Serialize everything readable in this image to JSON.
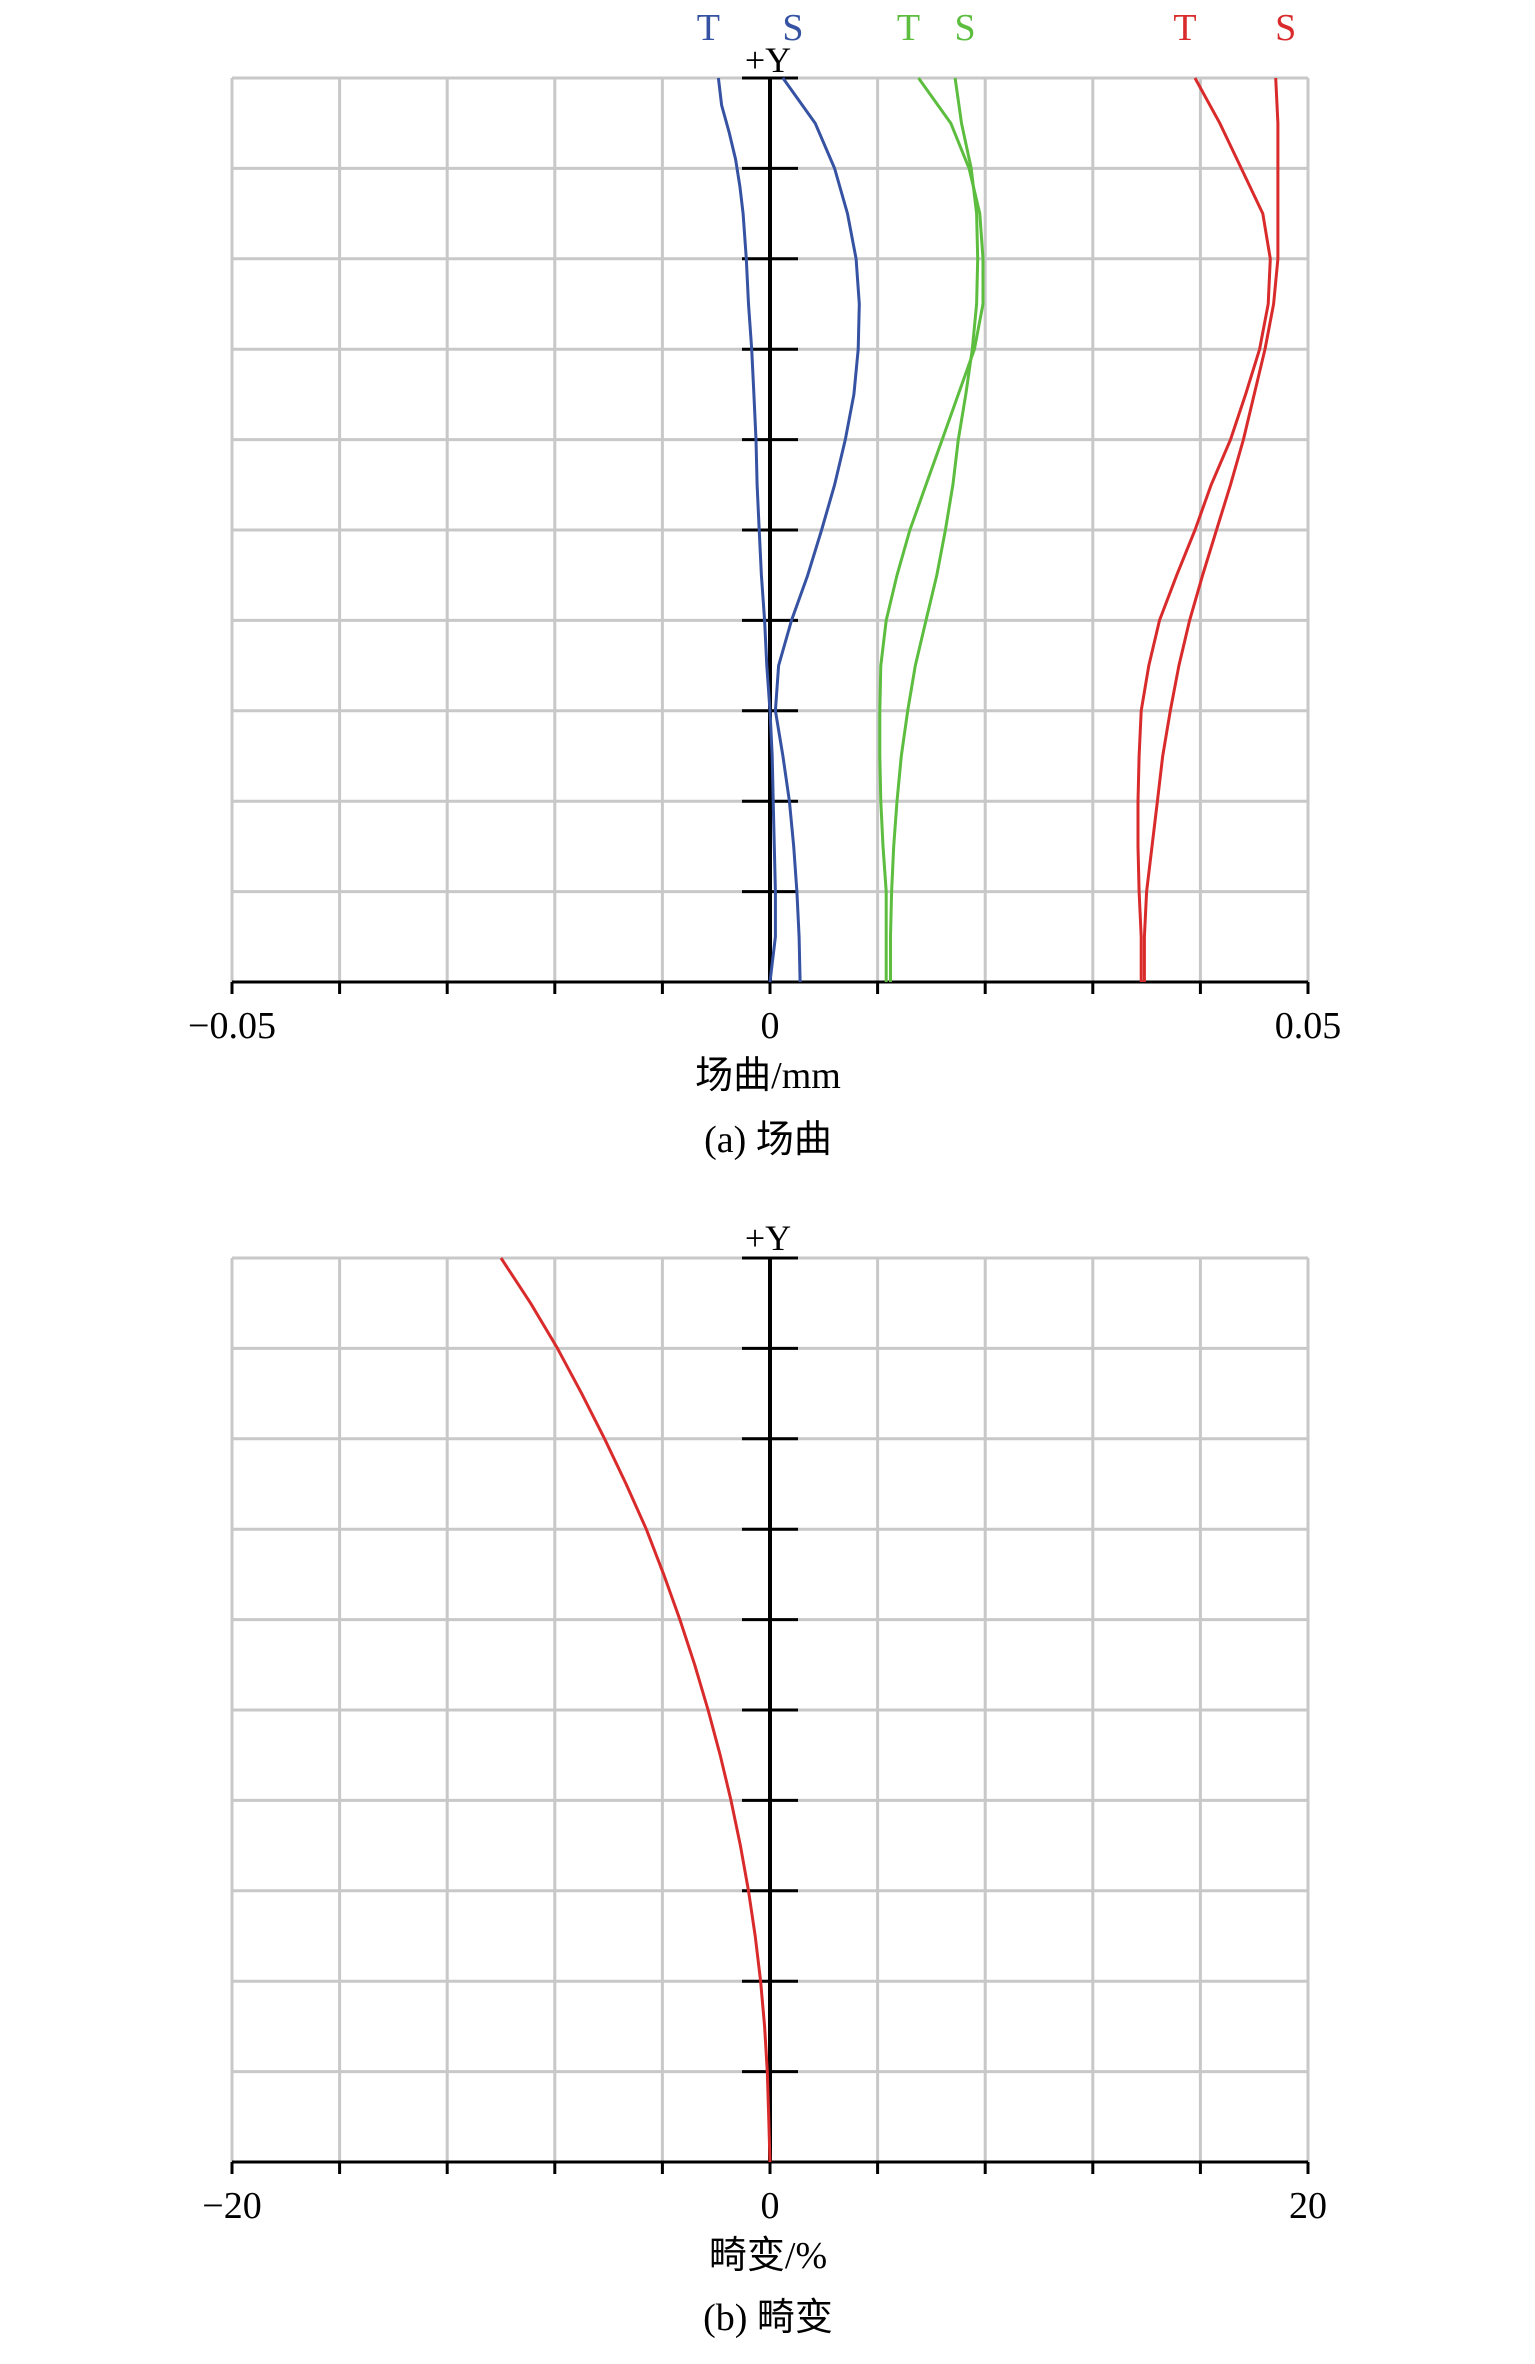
{
  "chart_data": [
    {
      "type": "line",
      "caption": "(a) 场曲",
      "xlabel": "场曲/mm",
      "y_axis_label": "+Y",
      "xlim": [
        -0.05,
        0.05
      ],
      "ylim": [
        0,
        1
      ],
      "x_ticks": [
        "−0.05",
        "0",
        "0.05"
      ],
      "grid": true,
      "legend": "top",
      "colors": {
        "blue": "#3652a2",
        "green": "#5cbd3f",
        "red": "#d92b2b",
        "grid": "#c8c8c8",
        "axis": "#000000"
      },
      "series": [
        {
          "name": "T",
          "color": "#3652a2",
          "points": [
            [
              0,
              0
            ],
            [
              0.0005,
              0.05
            ],
            [
              0.0005,
              0.1
            ],
            [
              0.0004,
              0.15
            ],
            [
              0.0003,
              0.2
            ],
            [
              0.0002,
              0.25
            ],
            [
              0.0,
              0.3
            ],
            [
              -0.0003,
              0.35
            ],
            [
              -0.0005,
              0.4
            ],
            [
              -0.0008,
              0.45
            ],
            [
              -0.001,
              0.5
            ],
            [
              -0.0012,
              0.55
            ],
            [
              -0.0013,
              0.6
            ],
            [
              -0.0015,
              0.65
            ],
            [
              -0.0017,
              0.7
            ],
            [
              -0.002,
              0.75
            ],
            [
              -0.0022,
              0.8
            ],
            [
              -0.0025,
              0.85
            ],
            [
              -0.0028,
              0.88
            ],
            [
              -0.0032,
              0.91
            ],
            [
              -0.0038,
              0.94
            ],
            [
              -0.0045,
              0.97
            ],
            [
              -0.0048,
              1.0
            ]
          ]
        },
        {
          "name": "S",
          "color": "#3652a2",
          "points": [
            [
              0.0028,
              0
            ],
            [
              0.0027,
              0.05
            ],
            [
              0.0025,
              0.1
            ],
            [
              0.0022,
              0.15
            ],
            [
              0.0018,
              0.2
            ],
            [
              0.0012,
              0.25
            ],
            [
              0.0005,
              0.3
            ],
            [
              0.0008,
              0.35
            ],
            [
              0.002,
              0.4
            ],
            [
              0.0035,
              0.45
            ],
            [
              0.0048,
              0.5
            ],
            [
              0.006,
              0.55
            ],
            [
              0.007,
              0.6
            ],
            [
              0.0078,
              0.65
            ],
            [
              0.0082,
              0.7
            ],
            [
              0.0083,
              0.75
            ],
            [
              0.008,
              0.8
            ],
            [
              0.0072,
              0.85
            ],
            [
              0.006,
              0.9
            ],
            [
              0.0042,
              0.95
            ],
            [
              0.0012,
              1.0
            ]
          ]
        },
        {
          "name": "T",
          "color": "#5cbd3f",
          "points": [
            [
              0.0108,
              0
            ],
            [
              0.0108,
              0.05
            ],
            [
              0.0108,
              0.1
            ],
            [
              0.0105,
              0.15
            ],
            [
              0.0103,
              0.2
            ],
            [
              0.0102,
              0.25
            ],
            [
              0.0102,
              0.3
            ],
            [
              0.0103,
              0.35
            ],
            [
              0.0108,
              0.4
            ],
            [
              0.0118,
              0.45
            ],
            [
              0.013,
              0.5
            ],
            [
              0.0145,
              0.55
            ],
            [
              0.016,
              0.6
            ],
            [
              0.0175,
              0.65
            ],
            [
              0.019,
              0.7
            ],
            [
              0.0198,
              0.75
            ],
            [
              0.0198,
              0.8
            ],
            [
              0.0195,
              0.85
            ],
            [
              0.0185,
              0.9
            ],
            [
              0.0168,
              0.95
            ],
            [
              0.0138,
              1.0
            ]
          ]
        },
        {
          "name": "S",
          "color": "#5cbd3f",
          "points": [
            [
              0.0112,
              0
            ],
            [
              0.0112,
              0.05
            ],
            [
              0.0113,
              0.1
            ],
            [
              0.0115,
              0.15
            ],
            [
              0.0118,
              0.2
            ],
            [
              0.0122,
              0.25
            ],
            [
              0.0128,
              0.3
            ],
            [
              0.0135,
              0.35
            ],
            [
              0.0145,
              0.4
            ],
            [
              0.0155,
              0.45
            ],
            [
              0.0163,
              0.5
            ],
            [
              0.017,
              0.55
            ],
            [
              0.0175,
              0.6
            ],
            [
              0.0182,
              0.65
            ],
            [
              0.0188,
              0.7
            ],
            [
              0.0192,
              0.75
            ],
            [
              0.0193,
              0.8
            ],
            [
              0.0192,
              0.85
            ],
            [
              0.0187,
              0.9
            ],
            [
              0.0178,
              0.95
            ],
            [
              0.0172,
              1.0
            ]
          ]
        },
        {
          "name": "T",
          "color": "#d92b2b",
          "points": [
            [
              0.0345,
              0
            ],
            [
              0.0345,
              0.05
            ],
            [
              0.0343,
              0.1
            ],
            [
              0.0342,
              0.15
            ],
            [
              0.0342,
              0.2
            ],
            [
              0.0343,
              0.25
            ],
            [
              0.0345,
              0.3
            ],
            [
              0.0352,
              0.35
            ],
            [
              0.0362,
              0.4
            ],
            [
              0.0378,
              0.45
            ],
            [
              0.0395,
              0.5
            ],
            [
              0.041,
              0.55
            ],
            [
              0.0428,
              0.6
            ],
            [
              0.0442,
              0.65
            ],
            [
              0.0455,
              0.7
            ],
            [
              0.0463,
              0.75
            ],
            [
              0.0465,
              0.8
            ],
            [
              0.0458,
              0.85
            ],
            [
              0.0438,
              0.9
            ],
            [
              0.0418,
              0.95
            ],
            [
              0.0395,
              1.0
            ]
          ]
        },
        {
          "name": "S",
          "color": "#d92b2b",
          "points": [
            [
              0.0348,
              0
            ],
            [
              0.0348,
              0.05
            ],
            [
              0.035,
              0.1
            ],
            [
              0.0355,
              0.15
            ],
            [
              0.036,
              0.2
            ],
            [
              0.0365,
              0.25
            ],
            [
              0.0372,
              0.3
            ],
            [
              0.038,
              0.35
            ],
            [
              0.039,
              0.4
            ],
            [
              0.0402,
              0.45
            ],
            [
              0.0415,
              0.5
            ],
            [
              0.0428,
              0.55
            ],
            [
              0.044,
              0.6
            ],
            [
              0.045,
              0.65
            ],
            [
              0.046,
              0.7
            ],
            [
              0.0468,
              0.75
            ],
            [
              0.0472,
              0.8
            ],
            [
              0.0472,
              0.85
            ],
            [
              0.0472,
              0.9
            ],
            [
              0.0472,
              0.95
            ],
            [
              0.047,
              1.0
            ]
          ]
        }
      ]
    },
    {
      "type": "line",
      "caption": "(b) 畸变",
      "xlabel": "畸变/%",
      "y_axis_label": "+Y",
      "xlim": [
        -20,
        20
      ],
      "ylim": [
        0,
        1
      ],
      "x_ticks": [
        "−20",
        "0",
        "20"
      ],
      "grid": true,
      "series": [
        {
          "name": "",
          "color": "#d92b2b",
          "points": [
            [
              0,
              0
            ],
            [
              -0.05,
              0.05
            ],
            [
              -0.1,
              0.1
            ],
            [
              -0.2,
              0.15
            ],
            [
              -0.35,
              0.2
            ],
            [
              -0.55,
              0.25
            ],
            [
              -0.8,
              0.3
            ],
            [
              -1.1,
              0.35
            ],
            [
              -1.45,
              0.4
            ],
            [
              -1.85,
              0.45
            ],
            [
              -2.3,
              0.5
            ],
            [
              -2.8,
              0.55
            ],
            [
              -3.35,
              0.6
            ],
            [
              -3.95,
              0.65
            ],
            [
              -4.6,
              0.7
            ],
            [
              -5.35,
              0.75
            ],
            [
              -6.15,
              0.8
            ],
            [
              -7.0,
              0.85
            ],
            [
              -7.9,
              0.9
            ],
            [
              -8.9,
              0.95
            ],
            [
              -10.0,
              1.0
            ]
          ]
        }
      ]
    }
  ]
}
